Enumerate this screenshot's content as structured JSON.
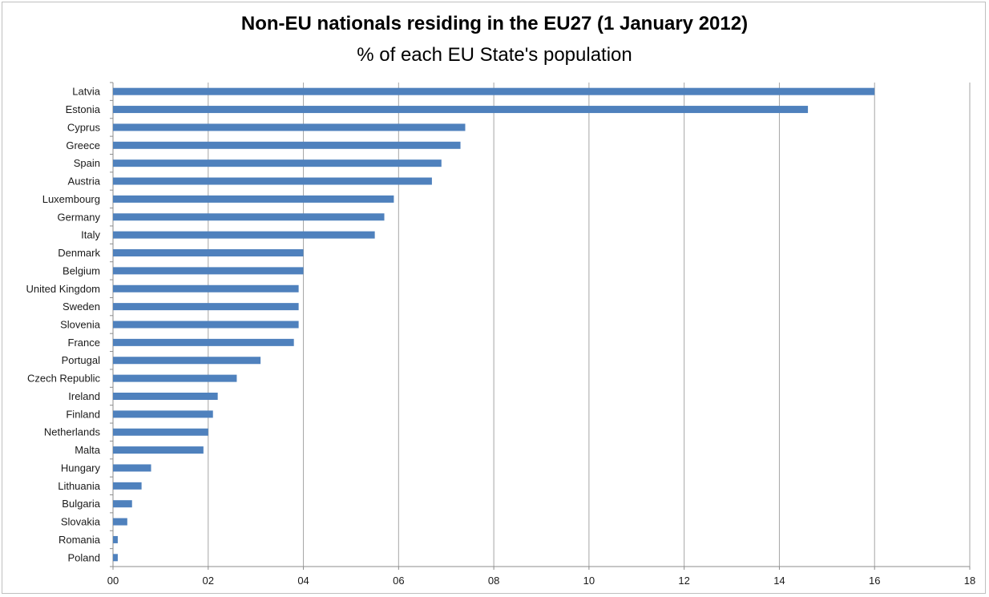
{
  "chart_data": {
    "type": "bar",
    "orientation": "horizontal",
    "title": "Non-EU nationals residing in the EU27 (1 January 2012)",
    "subtitle": "% of each EU State's population",
    "categories": [
      "Latvia",
      "Estonia",
      "Cyprus",
      "Greece",
      "Spain",
      "Austria",
      "Luxembourg",
      "Germany",
      "Italy",
      "Denmark",
      "Belgium",
      "United Kingdom",
      "Sweden",
      "Slovenia",
      "France",
      "Portugal",
      "Czech Republic",
      "Ireland",
      "Finland",
      "Netherlands",
      "Malta",
      "Hungary",
      "Lithuania",
      "Bulgaria",
      "Slovakia",
      "Romania",
      "Poland"
    ],
    "values": [
      16.0,
      14.6,
      7.4,
      7.3,
      6.9,
      6.7,
      5.9,
      5.7,
      5.5,
      4.0,
      4.0,
      3.9,
      3.9,
      3.9,
      3.8,
      3.1,
      2.6,
      2.2,
      2.1,
      2.0,
      1.9,
      0.8,
      0.6,
      0.4,
      0.3,
      0.1,
      0.1
    ],
    "xlim": [
      0,
      18
    ],
    "xticks": [
      0,
      2,
      4,
      6,
      8,
      10,
      12,
      14,
      16,
      18
    ],
    "xtick_labels": [
      "00",
      "02",
      "04",
      "06",
      "08",
      "10",
      "12",
      "14",
      "16",
      "18"
    ],
    "grid": "vertical",
    "bar_color": "#4f81bd",
    "grid_color": "#a6a6a6"
  }
}
